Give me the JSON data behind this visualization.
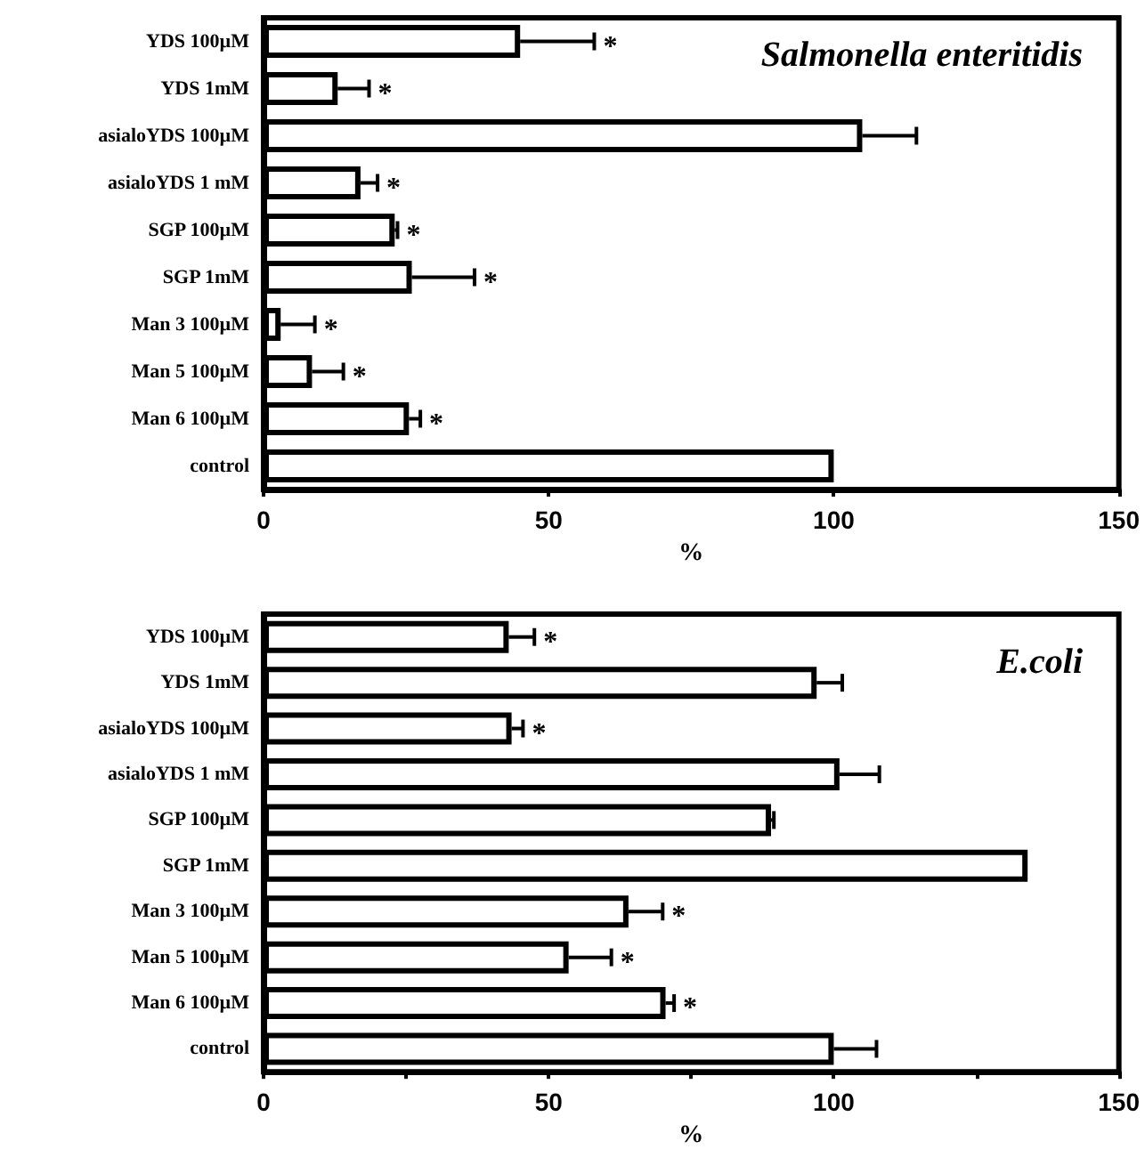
{
  "chart_data": [
    {
      "type": "bar",
      "orientation": "horizontal",
      "title": "Salmonella enteritidis",
      "xlabel": "%",
      "categories": [
        "YDS 100µM",
        "YDS 1mM",
        "asialoYDS 100µM",
        "asialoYDS 1 mM",
        "SGP 100µM",
        "SGP 1mM",
        "Man 3 100µM",
        "Man 5 100µM",
        "Man 6 100µM",
        "control"
      ],
      "series": [
        {
          "color": "#ffffff",
          "values": [
            45,
            13,
            105,
            17,
            23,
            26,
            3,
            8.5,
            25.5,
            100
          ],
          "errors": [
            13,
            5.5,
            9.5,
            3,
            0.5,
            11,
            6,
            5.5,
            2,
            null
          ]
        }
      ],
      "xlim": [
        0,
        150
      ],
      "xticks": [
        0,
        50,
        100,
        150
      ],
      "grid": false,
      "annotations": [
        {
          "text": "*",
          "x": 58,
          "y": "YDS 100µM"
        },
        {
          "text": "*",
          "x": 18.5,
          "y": "YDS 1mM"
        },
        {
          "text": "*",
          "x": 20,
          "y": "asialoYDS 1 mM"
        },
        {
          "text": "*",
          "x": 23.5,
          "y": "SGP 100µM"
        },
        {
          "text": "*",
          "x": 37,
          "y": "SGP 1mM"
        },
        {
          "text": "*",
          "x": 9,
          "y": "Man 3 100µM"
        },
        {
          "text": "*",
          "x": 14,
          "y": "Man 5 100µM"
        },
        {
          "text": "*",
          "x": 27.5,
          "y": "Man 6 100µM"
        }
      ]
    },
    {
      "type": "bar",
      "orientation": "horizontal",
      "title": "E.coli",
      "xlabel": "%",
      "categories": [
        "YDS 100µM",
        "YDS 1mM",
        "asialoYDS 100µM",
        "asialoYDS 1 mM",
        "SGP 100µM",
        "SGP 1mM",
        "Man 3 100µM",
        "Man 5 100µM",
        "Man 6 100µM",
        "control"
      ],
      "series": [
        {
          "color": "#ffffff",
          "values": [
            43,
            97,
            43.5,
            101,
            89,
            134,
            64,
            53.5,
            70.5,
            100
          ],
          "errors": [
            4.5,
            4.5,
            2,
            7,
            0.5,
            null,
            6,
            7.5,
            1.5,
            7.5
          ]
        }
      ],
      "xlim": [
        0,
        150
      ],
      "xticks": [
        0,
        {
          "value": 25,
          "label": null
        },
        50,
        {
          "value": 75,
          "label": null
        },
        100,
        {
          "value": 125,
          "label": null
        },
        150
      ],
      "grid": false,
      "annotations": [
        {
          "text": "*",
          "x": 47.5,
          "y": "YDS 100µM"
        },
        {
          "text": "*",
          "x": 45.5,
          "y": "asialoYDS 100µM"
        },
        {
          "text": "*",
          "x": 70,
          "y": "Man 3 100µM"
        },
        {
          "text": "*",
          "x": 61,
          "y": "Man 5 100µM"
        },
        {
          "text": "*",
          "x": 72,
          "y": "Man 6 100µM"
        }
      ]
    }
  ]
}
